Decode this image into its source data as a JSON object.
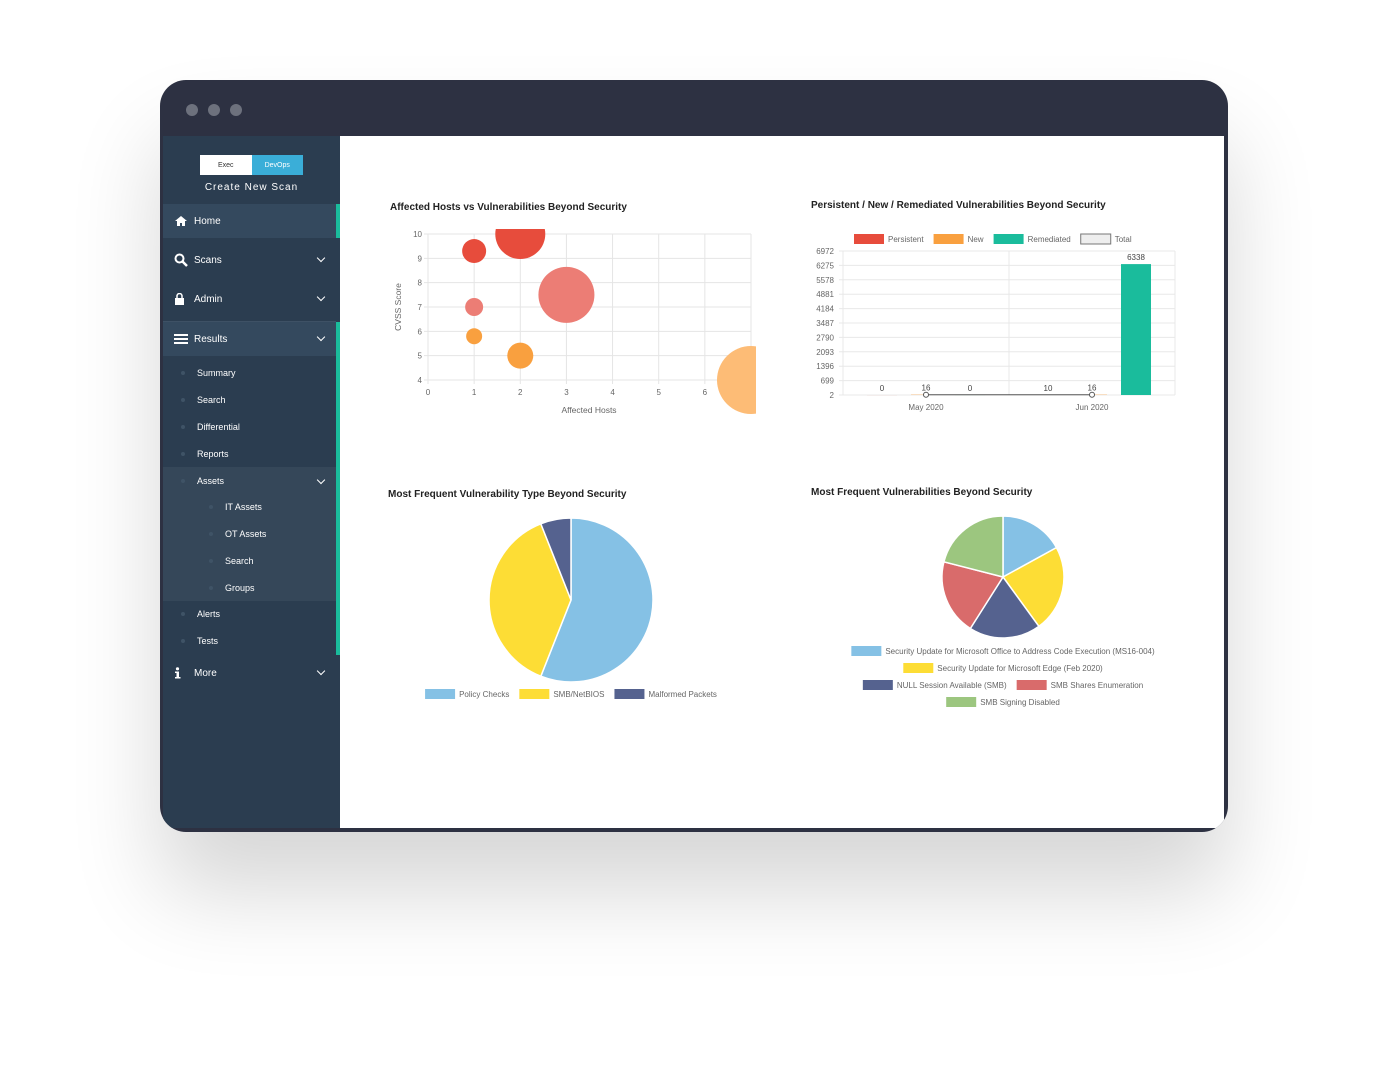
{
  "sidebar": {
    "toggle": [
      "Exec",
      "DevOps"
    ],
    "create": "Create New Scan",
    "menu": [
      "Home",
      "Scans",
      "Admin",
      "Results",
      "More"
    ],
    "results": [
      "Summary",
      "Search",
      "Differential",
      "Reports",
      "Assets",
      "Alerts",
      "Tests"
    ],
    "assets": [
      "IT Assets",
      "OT Assets",
      "Search",
      "Groups"
    ]
  },
  "chart_data": [
    {
      "type": "bubble",
      "title": "Affected Hosts vs Vulnerabilities Beyond Security",
      "x_label": "Affected Hosts",
      "y_label": "CVSS Score",
      "x": [
        1,
        2,
        3,
        1,
        1,
        2,
        7
      ],
      "values": [
        9.3,
        10,
        7.5,
        7,
        5.8,
        5,
        4
      ],
      "sizes": [
        12,
        25,
        28,
        9,
        8,
        13,
        34
      ],
      "colors": [
        "#e74c3c",
        "#e74c3c",
        "#ec7d75",
        "#ec7d75",
        "#f9a03f",
        "#f9a03f",
        "#fdbc76"
      ],
      "xlim": [
        0,
        7
      ],
      "ylim": [
        4,
        10
      ],
      "xticks": [
        0,
        1,
        2,
        3,
        4,
        5,
        6,
        7
      ],
      "yticks": [
        4,
        5,
        6,
        7,
        8,
        9,
        10
      ],
      "grid": true
    },
    {
      "type": "bar",
      "title": "Persistent / New / Remediated Vulnerabilities Beyond Security",
      "categories": [
        "May 2020",
        "Jun 2020"
      ],
      "series": [
        {
          "name": "Persistent",
          "color": "#e74c3c",
          "values": [
            0,
            10
          ]
        },
        {
          "name": "New",
          "color": "#f9a03f",
          "values": [
            16,
            16
          ]
        },
        {
          "name": "Remediated",
          "color": "#1abc9c",
          "values": [
            0,
            6338
          ]
        },
        {
          "name": "Total",
          "color": "#9e9e9e",
          "type": "line",
          "values": [
            16,
            16
          ]
        }
      ],
      "ylim": [
        2,
        6972
      ],
      "yticks": [
        2,
        699,
        1396,
        2093,
        2790,
        3487,
        4184,
        4881,
        5578,
        6275,
        6972
      ],
      "grid": true
    },
    {
      "type": "pie",
      "title": "Most Frequent Vulnerability Type Beyond Security",
      "categories": [
        "Policy Checks",
        "SMB/NetBIOS",
        "Malformed Packets"
      ],
      "values": [
        56,
        38,
        6
      ],
      "colors": [
        "#85c1e5",
        "#fddd35",
        "#55628f"
      ]
    },
    {
      "type": "pie",
      "title": "Most Frequent Vulnerabilities Beyond Security",
      "categories": [
        "Security Update for Microsoft Office to Address Code Execution (MS16-004)",
        "Security Update for Microsoft Edge (Feb 2020)",
        "NULL Session Available (SMB)",
        "SMB Shares Enumeration",
        "SMB Signing Disabled"
      ],
      "values": [
        17,
        23,
        19,
        20,
        21
      ],
      "colors": [
        "#85c1e5",
        "#fddd35",
        "#55628f",
        "#d96b6b",
        "#9cc67f"
      ]
    }
  ]
}
